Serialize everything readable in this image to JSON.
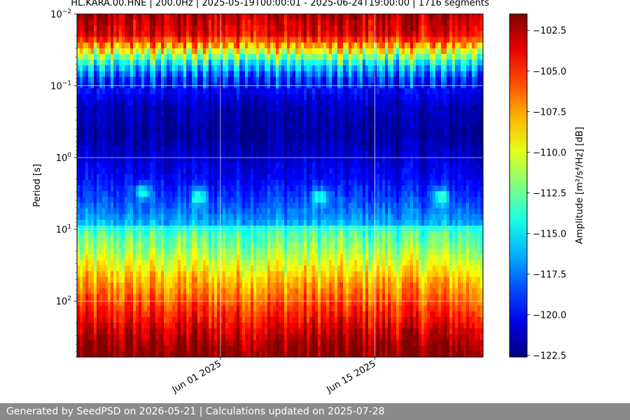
{
  "title": "HL.KARA.00.HNE | 200.0Hz | 2025-05-19T00:00:01 - 2025-06-24T19:00:00 | 1716 segments",
  "footer": "Generated by SeedPSD on 2026-05-21 | Calculations updated on 2025-07-28",
  "chart_data": {
    "type": "heatmap",
    "title": "HL.KARA.00.HNE | 200.0Hz | 2025-05-19T00:00:01 - 2025-06-24T19:00:00 | 1716 segments",
    "xlabel": "",
    "ylabel": "Period [s]",
    "x_range": [
      "2025-05-19T00:00:01",
      "2025-06-24T19:00:00"
    ],
    "x_ticks": [
      {
        "date": "2025-06-01",
        "label": "Jun 01 2025"
      },
      {
        "date": "2025-06-15",
        "label": "Jun 15 2025"
      }
    ],
    "y_scale": "log",
    "y_inverted": true,
    "y_range": [
      0.01,
      600
    ],
    "y_ticks": [
      {
        "value": 0.01,
        "base": "10",
        "exp": "−2"
      },
      {
        "value": 0.1,
        "base": "10",
        "exp": "−1"
      },
      {
        "value": 1,
        "base": "10",
        "exp": "0"
      },
      {
        "value": 10,
        "base": "10",
        "exp": "1"
      },
      {
        "value": 100,
        "base": "10",
        "exp": "2"
      }
    ],
    "grid": true,
    "colormap": "jet",
    "colorbar": {
      "label": "Amplitude [m²/s⁴/Hz] [dB]",
      "range": [
        -122.6,
        -101.5
      ],
      "ticks": [
        "-102.5",
        "-105.0",
        "-107.5",
        "-110.0",
        "-112.5",
        "-115.0",
        "-117.5",
        "-120.0",
        "-122.5"
      ]
    },
    "period_profile_db": [
      {
        "period": 0.01,
        "db": -102.5
      },
      {
        "period": 0.02,
        "db": -104.0
      },
      {
        "period": 0.03,
        "db": -108.5
      },
      {
        "period": 0.05,
        "db": -115.0
      },
      {
        "period": 0.08,
        "db": -119.0
      },
      {
        "period": 0.2,
        "db": -121.5
      },
      {
        "period": 0.5,
        "db": -122.0
      },
      {
        "period": 1.0,
        "db": -121.0
      },
      {
        "period": 2.0,
        "db": -120.0
      },
      {
        "period": 4.0,
        "db": -118.5
      },
      {
        "period": 8.0,
        "db": -116.5
      },
      {
        "period": 10.0,
        "db": -113.5
      },
      {
        "period": 20.0,
        "db": -111.5
      },
      {
        "period": 50.0,
        "db": -108.0
      },
      {
        "period": 100.0,
        "db": -106.0
      },
      {
        "period": 200.0,
        "db": -104.0
      },
      {
        "period": 400.0,
        "db": -102.0
      },
      {
        "period": 600.0,
        "db": -101.5
      }
    ],
    "microseism_events": [
      {
        "date": "2025-05-25",
        "period": 3.0
      },
      {
        "date": "2025-05-30",
        "period": 3.5
      },
      {
        "date": "2025-06-10",
        "period": 3.5
      },
      {
        "date": "2025-06-21",
        "period": 3.5
      }
    ]
  }
}
